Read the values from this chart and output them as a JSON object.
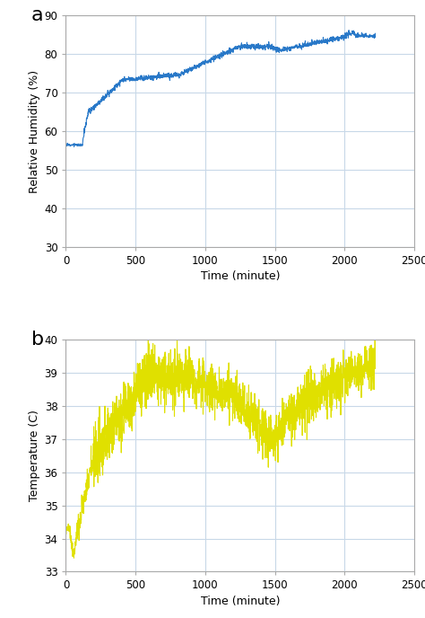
{
  "fig_width": 4.74,
  "fig_height": 6.88,
  "dpi": 100,
  "bg_color": "#ffffff",
  "panel_a": {
    "label": "a",
    "xlabel": "Time (minute)",
    "ylabel": "Relative Humidity (%)",
    "xlim": [
      0,
      2500
    ],
    "ylim": [
      30,
      90
    ],
    "xticks": [
      0,
      500,
      1000,
      1500,
      2000,
      2500
    ],
    "yticks": [
      30,
      40,
      50,
      60,
      70,
      80,
      90
    ],
    "line_color": "#2878c8",
    "line_width": 0.8,
    "grid_color": "#c8d8e8",
    "spine_color": "#aaaaaa",
    "face_color": "#ffffff"
  },
  "panel_b": {
    "label": "b",
    "xlabel": "Time (minute)",
    "ylabel": "Temperature (C)",
    "xlim": [
      0,
      2500
    ],
    "ylim": [
      33,
      40
    ],
    "xticks": [
      0,
      500,
      1000,
      1500,
      2000,
      2500
    ],
    "yticks": [
      33,
      34,
      35,
      36,
      37,
      38,
      39,
      40
    ],
    "line_color": "#e0e000",
    "line_width": 0.8,
    "grid_color": "#c8d8e8",
    "spine_color": "#aaaaaa",
    "face_color": "#ffffff"
  }
}
